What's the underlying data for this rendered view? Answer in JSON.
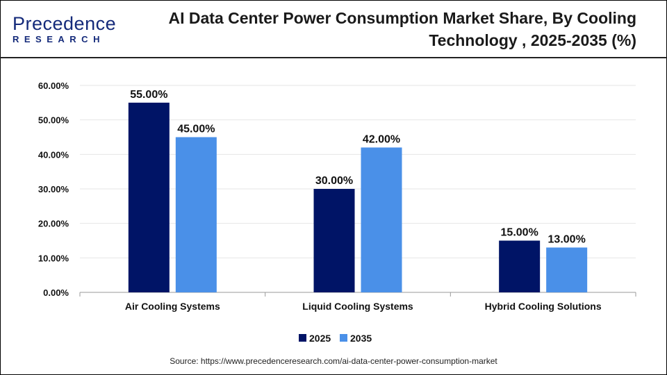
{
  "logo": {
    "main": "Precedence",
    "sub": "RESEARCH"
  },
  "header": {
    "title": "AI Data Center Power Consumption Market Share, By Cooling Technology , 2025-2035 (%)"
  },
  "source": "Source: https://www.precedenceresearch.com/ai-data-center-power-consumption-market",
  "chart_data": {
    "type": "bar",
    "title": "AI Data Center Power Consumption Market Share, By Cooling Technology , 2025-2035 (%)",
    "categories": [
      "Air Cooling Systems",
      "Liquid Cooling Systems",
      "Hybrid Cooling Solutions"
    ],
    "series": [
      {
        "name": "2025",
        "values": [
          55,
          30,
          15
        ],
        "labels": [
          "55.00%",
          "30.00%",
          "15.00%"
        ],
        "color": "#001466"
      },
      {
        "name": "2035",
        "values": [
          45,
          42,
          13
        ],
        "labels": [
          "45.00%",
          "42.00%",
          "13.00%"
        ],
        "color": "#4a90e8"
      }
    ],
    "ylim": [
      0,
      60
    ],
    "yticks": [
      "0.00%",
      "10.00%",
      "20.00%",
      "30.00%",
      "40.00%",
      "50.00%",
      "60.00%"
    ],
    "grid": true,
    "legend_position": "bottom"
  }
}
